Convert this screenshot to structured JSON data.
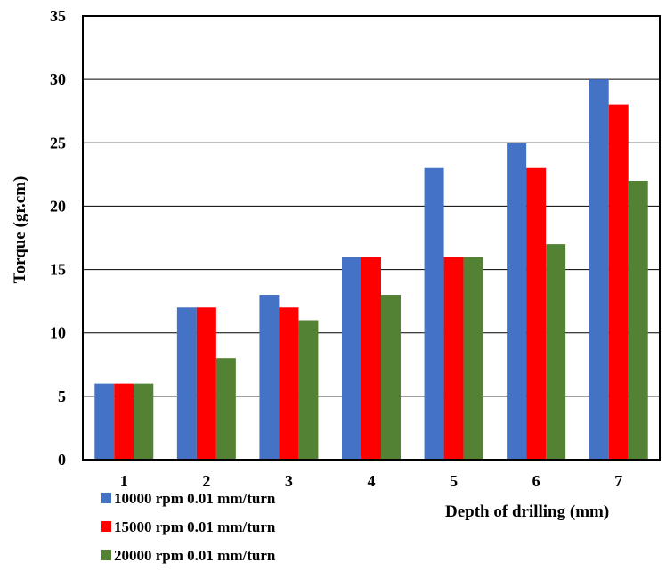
{
  "chart_data": {
    "type": "bar",
    "categories": [
      "1",
      "2",
      "3",
      "4",
      "5",
      "6",
      "7"
    ],
    "series": [
      {
        "name": "10000 rpm 0.01 mm/turn",
        "color": "#4472C4",
        "values": [
          6,
          12,
          13,
          16,
          23,
          25,
          30
        ]
      },
      {
        "name": "15000 rpm 0.01 mm/turn",
        "color": "#FF0000",
        "values": [
          6,
          12,
          12,
          16,
          16,
          23,
          28
        ]
      },
      {
        "name": "20000 rpm 0.01 mm/turn",
        "color": "#548235",
        "values": [
          6,
          8,
          11,
          13,
          16,
          17,
          22
        ]
      }
    ],
    "xlabel": "Depth of drilling (mm)",
    "ylabel": "Torque (gr.cm)",
    "ylim": [
      0,
      35
    ],
    "yticks": [
      0,
      5,
      10,
      15,
      20,
      25,
      30,
      35
    ],
    "grid": "horizontal",
    "legend_position": "bottom-left"
  }
}
